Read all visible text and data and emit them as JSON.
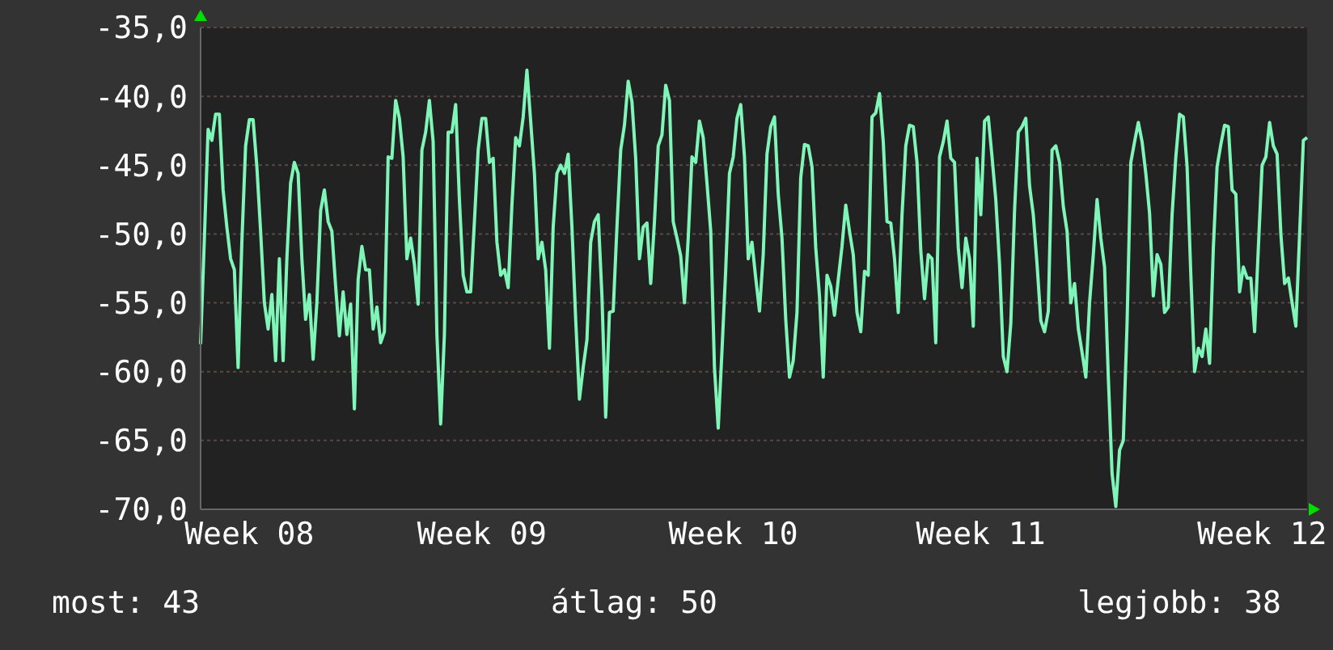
{
  "chart_data": {
    "type": "line",
    "categories": [
      null,
      null,
      null,
      null,
      null,
      null,
      null,
      null,
      null,
      null,
      null,
      null,
      null,
      "Week 08",
      null,
      null,
      null,
      null,
      null,
      null,
      null,
      null,
      null,
      null,
      null,
      null,
      null,
      null,
      null,
      null,
      null,
      null,
      null,
      null,
      null,
      null,
      null,
      null,
      null,
      null,
      null,
      null,
      null,
      null,
      null,
      null,
      null,
      null,
      null,
      null,
      null,
      null,
      null,
      null,
      null,
      null,
      null,
      null,
      null,
      null,
      null,
      null,
      null,
      null,
      null,
      null,
      null,
      null,
      null,
      null,
      null,
      null,
      null,
      null,
      null,
      "Week 09",
      null,
      null,
      null,
      null,
      null,
      null,
      null,
      null,
      null,
      null,
      null,
      null,
      null,
      null,
      null,
      null,
      null,
      null,
      null,
      null,
      null,
      null,
      null,
      null,
      null,
      null,
      null,
      null,
      null,
      null,
      null,
      null,
      null,
      null,
      null,
      null,
      null,
      null,
      null,
      null,
      null,
      null,
      null,
      null,
      null,
      null,
      null,
      null,
      null,
      null,
      null,
      null,
      null,
      null,
      null,
      null,
      null,
      null,
      null,
      null,
      null,
      null,
      null,
      null,
      null,
      null,
      "Week 10",
      null,
      null,
      null,
      null,
      null,
      null,
      null,
      null,
      null,
      null,
      null,
      null,
      null,
      null,
      null,
      null,
      null,
      null,
      null,
      null,
      null,
      null,
      null,
      null,
      null,
      null,
      null,
      null,
      null,
      null,
      null,
      null,
      null,
      null,
      null,
      null,
      null,
      null,
      null,
      null,
      null,
      null,
      null,
      null,
      null,
      null,
      null,
      null,
      null,
      null,
      null,
      null,
      null,
      null,
      null,
      null,
      null,
      null,
      null,
      null,
      null,
      null,
      null,
      null,
      null,
      "Week 11",
      null,
      null,
      null,
      null,
      null,
      null,
      null,
      null,
      null,
      null,
      null,
      null,
      null,
      null,
      null,
      null,
      null,
      null,
      null,
      null,
      null,
      null,
      null,
      null,
      null,
      null,
      null,
      null,
      null,
      null,
      null,
      null,
      null,
      null,
      null,
      null,
      null,
      null,
      null,
      null,
      null,
      null,
      null,
      null,
      null,
      null,
      null,
      null,
      null,
      null,
      null,
      null,
      null,
      null,
      null,
      null,
      null,
      null,
      null,
      null,
      null,
      null,
      null,
      null,
      null,
      null,
      null,
      null,
      null,
      null,
      null,
      null,
      null,
      null,
      "Week 12",
      null,
      null,
      null,
      null,
      null,
      null,
      null,
      null,
      null,
      null,
      null,
      null
    ],
    "series": [
      {
        "color": "#7ff5b8",
        "values": [
          -58.0,
          -50.4,
          -42.4,
          -43.2,
          -41.3,
          -41.3,
          -46.8,
          -49.5,
          -51.8,
          -52.6,
          -59.7,
          -50.6,
          -43.6,
          -41.7,
          -41.7,
          -45.1,
          -49.8,
          -55.0,
          -56.9,
          -54.4,
          -59.2,
          -51.8,
          -59.2,
          -51.8,
          -46.3,
          -44.8,
          -45.6,
          -51.8,
          -56.2,
          -54.4,
          -59.1,
          -55.0,
          -48.3,
          -46.8,
          -49.1,
          -49.8,
          -53.8,
          -57.4,
          -54.2,
          -57.3,
          -55.1,
          -62.7,
          -53.3,
          -50.9,
          -52.6,
          -52.6,
          -56.9,
          -55.3,
          -57.9,
          -57.1,
          -44.4,
          -44.5,
          -40.3,
          -41.6,
          -44.4,
          -51.8,
          -50.3,
          -52.2,
          -55.1,
          -43.9,
          -42.6,
          -40.3,
          -43.3,
          -57.3,
          -63.8,
          -57.3,
          -42.6,
          -42.6,
          -40.6,
          -47.5,
          -53.0,
          -54.2,
          -54.2,
          -49.1,
          -43.9,
          -41.6,
          -41.6,
          -44.8,
          -44.5,
          -50.6,
          -53.0,
          -52.6,
          -53.9,
          -47.9,
          -43.0,
          -43.6,
          -41.5,
          -38.1,
          -41.8,
          -45.6,
          -51.8,
          -50.6,
          -52.6,
          -58.3,
          -49.5,
          -45.6,
          -45.0,
          -45.6,
          -44.2,
          -49.5,
          -56.2,
          -62.0,
          -59.7,
          -57.7,
          -50.6,
          -49.1,
          -48.6,
          -54.5,
          -63.3,
          -55.7,
          -55.6,
          -49.5,
          -43.9,
          -42.1,
          -38.9,
          -40.4,
          -44.5,
          -51.8,
          -49.5,
          -49.2,
          -53.6,
          -49.1,
          -43.6,
          -42.8,
          -39.2,
          -40.3,
          -49.1,
          -50.3,
          -51.6,
          -55.0,
          -50.3,
          -44.4,
          -44.8,
          -41.8,
          -43.0,
          -46.3,
          -49.8,
          -59.7,
          -64.1,
          -58.5,
          -52.6,
          -45.6,
          -44.4,
          -41.6,
          -40.6,
          -44.4,
          -51.8,
          -50.6,
          -53.2,
          -55.6,
          -51.5,
          -44.2,
          -42.2,
          -41.5,
          -47.1,
          -50.3,
          -56.2,
          -60.4,
          -59.2,
          -55.7,
          -45.9,
          -43.5,
          -43.6,
          -45.1,
          -51.0,
          -54.5,
          -60.4,
          -53.0,
          -53.8,
          -55.9,
          -53.3,
          -50.9,
          -47.9,
          -49.8,
          -51.5,
          -55.7,
          -57.1,
          -52.7,
          -53.0,
          -41.5,
          -41.2,
          -39.8,
          -43.3,
          -49.1,
          -49.2,
          -51.8,
          -55.7,
          -48.6,
          -43.6,
          -42.1,
          -42.2,
          -44.8,
          -51.2,
          -54.7,
          -51.5,
          -51.8,
          -57.9,
          -44.4,
          -43.3,
          -41.8,
          -44.5,
          -44.8,
          -51.0,
          -53.9,
          -50.3,
          -51.8,
          -56.7,
          -44.5,
          -48.6,
          -41.8,
          -41.5,
          -44.4,
          -47.5,
          -52.2,
          -58.9,
          -60.0,
          -56.5,
          -48.3,
          -42.6,
          -42.2,
          -41.6,
          -46.5,
          -48.6,
          -52.2,
          -56.3,
          -57.1,
          -55.6,
          -43.9,
          -43.6,
          -44.8,
          -48.0,
          -49.8,
          -55.0,
          -53.6,
          -56.9,
          -58.6,
          -60.4,
          -55.0,
          -51.5,
          -47.5,
          -50.3,
          -52.4,
          -60.4,
          -67.4,
          -69.8,
          -65.7,
          -65.0,
          -56.5,
          -44.8,
          -43.3,
          -41.9,
          -43.3,
          -45.6,
          -48.5,
          -54.5,
          -51.5,
          -52.2,
          -55.7,
          -55.3,
          -48.6,
          -44.4,
          -41.3,
          -41.5,
          -45.1,
          -53.0,
          -60.0,
          -58.3,
          -58.9,
          -56.9,
          -59.4,
          -51.0,
          -45.1,
          -43.5,
          -42.1,
          -42.2,
          -46.8,
          -47.1,
          -54.2,
          -52.4,
          -53.2,
          -53.2,
          -57.1,
          -51.0,
          -45.0,
          -44.4,
          -41.9,
          -43.6,
          -44.2,
          -50.0,
          -53.6,
          -53.2,
          -55.0,
          -56.7,
          -50.0,
          -43.2,
          -43.0
        ]
      }
    ],
    "ylim": [
      -70,
      -35
    ],
    "yticks": [
      {
        "value": -70,
        "label": "-70,0"
      },
      {
        "value": -65,
        "label": "-65,0"
      },
      {
        "value": -60,
        "label": "-60,0"
      },
      {
        "value": -55,
        "label": "-55,0"
      },
      {
        "value": -50,
        "label": "-50,0"
      },
      {
        "value": -45,
        "label": "-45,0"
      },
      {
        "value": -40,
        "label": "-40,0"
      },
      {
        "value": -35,
        "label": "-35,0"
      }
    ],
    "grid": "y",
    "legend": false,
    "marker": "none",
    "annotations": [
      "most: 43",
      "átlag: 50",
      "legjobb: 38"
    ]
  }
}
